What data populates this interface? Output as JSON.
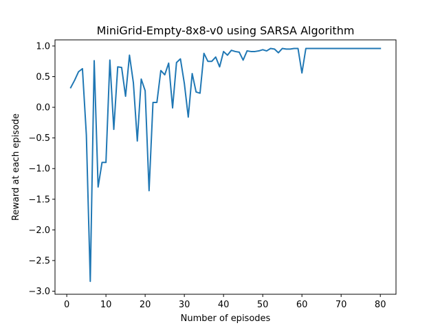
{
  "chart_data": {
    "type": "line",
    "title": "MiniGrid-Empty-8x8-v0 using SARSA Algorithm",
    "xlabel": "Number of episodes",
    "ylabel": "Reward at each episode",
    "xlim": [
      -3,
      84
    ],
    "ylim": [
      -3.05,
      1.1
    ],
    "xticks": [
      0,
      10,
      20,
      30,
      40,
      50,
      60,
      70,
      80
    ],
    "yticks": [
      -3.0,
      -2.5,
      -2.0,
      -1.5,
      -1.0,
      -0.5,
      0.0,
      0.5,
      1.0
    ],
    "xtick_labels": [
      "0",
      "10",
      "20",
      "30",
      "40",
      "50",
      "60",
      "70",
      "80"
    ],
    "ytick_labels": [
      "−3.0",
      "−2.5",
      "−2.0",
      "−1.5",
      "−1.0",
      "−0.5",
      "0.0",
      "0.5",
      "1.0"
    ],
    "grid": false,
    "color": "#1f77b4",
    "x": [
      1,
      2,
      3,
      4,
      5,
      6,
      7,
      8,
      9,
      10,
      11,
      12,
      13,
      14,
      15,
      16,
      17,
      18,
      19,
      20,
      21,
      22,
      23,
      24,
      25,
      26,
      27,
      28,
      29,
      30,
      31,
      32,
      33,
      34,
      35,
      36,
      37,
      38,
      39,
      40,
      41,
      42,
      43,
      44,
      45,
      46,
      47,
      48,
      49,
      50,
      51,
      52,
      53,
      54,
      55,
      56,
      57,
      58,
      59,
      60,
      61,
      62,
      63,
      64,
      65,
      66,
      67,
      68,
      69,
      70,
      71,
      72,
      73,
      74,
      75,
      76,
      77,
      78,
      79,
      80
    ],
    "series": [
      {
        "values": [
          0.32,
          0.44,
          0.58,
          0.63,
          -0.45,
          -2.84,
          0.76,
          -1.3,
          -0.9,
          -0.9,
          0.77,
          -0.36,
          0.66,
          0.65,
          0.18,
          0.85,
          0.4,
          -0.55,
          0.46,
          0.27,
          -1.36,
          0.08,
          0.08,
          0.6,
          0.53,
          0.72,
          -0.01,
          0.73,
          0.79,
          0.39,
          -0.16,
          0.55,
          0.25,
          0.23,
          0.88,
          0.75,
          0.75,
          0.82,
          0.66,
          0.91,
          0.85,
          0.93,
          0.91,
          0.9,
          0.77,
          0.92,
          0.91,
          0.91,
          0.92,
          0.94,
          0.92,
          0.96,
          0.95,
          0.89,
          0.96,
          0.95,
          0.95,
          0.96,
          0.96,
          0.56,
          0.96,
          0.96,
          0.96,
          0.96,
          0.96,
          0.96,
          0.96,
          0.96,
          0.96,
          0.96,
          0.96,
          0.96,
          0.96,
          0.96,
          0.96,
          0.96,
          0.96,
          0.96,
          0.96,
          0.96
        ]
      }
    ]
  }
}
